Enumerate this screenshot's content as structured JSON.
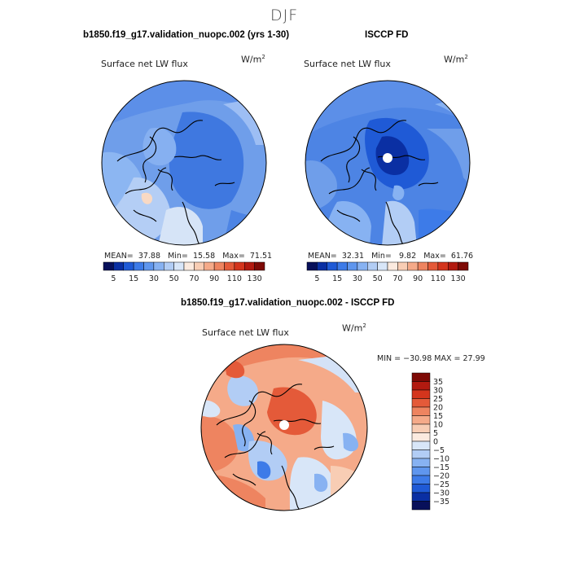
{
  "season": "DJF",
  "panels": {
    "model": {
      "title": "b1850.f19_g17.validation_nuopc.002 (yrs 1-30)",
      "field": "Surface net LW flux",
      "units_base": "W/m",
      "units_exp": "2",
      "stats": {
        "mean_label": "MEAN=",
        "mean": "37.88",
        "min_label": "Min=",
        "min": "15.58",
        "max_label": "Max=",
        "max": "71.51"
      }
    },
    "obs": {
      "title": "ISCCP FD",
      "field": "Surface net LW flux",
      "units_base": "W/m",
      "units_exp": "2",
      "stats": {
        "mean_label": "MEAN=",
        "mean": "32.31",
        "min_label": "Min=",
        "min": "9.82",
        "max_label": "Max=",
        "max": "61.76"
      }
    },
    "diff": {
      "title": "b1850.f19_g17.validation_nuopc.002 - ISCCP FD",
      "field": "Surface net LW flux",
      "units_base": "W/m",
      "units_exp": "2",
      "minmax": "MIN = −30.98 MAX =  27.99"
    }
  },
  "colorbar_abs": {
    "labels": [
      "5",
      "15",
      "30",
      "50",
      "70",
      "90",
      "110",
      "130"
    ],
    "colors": [
      "#08105a",
      "#0a2fa3",
      "#1f5ad6",
      "#3d7be8",
      "#5f96ee",
      "#87b2f2",
      "#b2cdf5",
      "#d8e6f8",
      "#fbeadf",
      "#f8cdb4",
      "#f5aa89",
      "#ee8460",
      "#e45a39",
      "#d4351d",
      "#b21a10",
      "#7e0a06"
    ]
  },
  "colorbar_diff": {
    "labels": [
      "35",
      "30",
      "25",
      "20",
      "15",
      "10",
      "5",
      "0",
      "−5",
      "−10",
      "−15",
      "−20",
      "−25",
      "−30",
      "−35"
    ],
    "colors": [
      "#7e0a06",
      "#b21a10",
      "#d4351d",
      "#e45a39",
      "#ee8460",
      "#f5aa89",
      "#f8cdb4",
      "#fbeadf",
      "#d8e6f8",
      "#b2cdf5",
      "#87b2f2",
      "#5f96ee",
      "#3d7be8",
      "#1f5ad6",
      "#0a2fa3",
      "#08105a"
    ]
  }
}
